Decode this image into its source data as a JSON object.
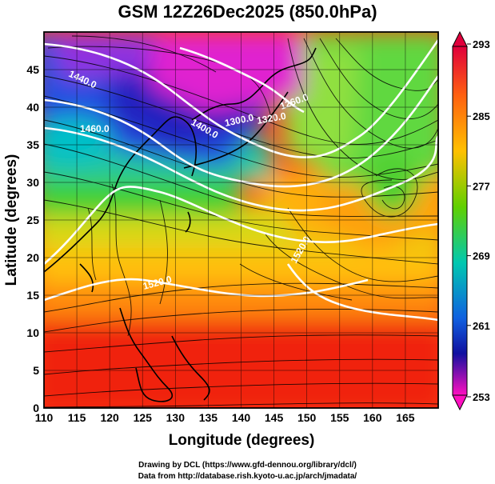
{
  "title": "GSM 12Z26Dec2025 (850.0hPa)",
  "x_axis": {
    "label": "Longitude (degrees)",
    "ticks": [
      "110",
      "115",
      "120",
      "125",
      "130",
      "135",
      "140",
      "145",
      "150",
      "155",
      "160",
      "165"
    ]
  },
  "y_axis": {
    "label": "Latitude  (degrees)",
    "ticks": [
      "0",
      "5",
      "10",
      "15",
      "20",
      "25",
      "30",
      "35",
      "40",
      "45"
    ]
  },
  "colorbar": {
    "ticks": [
      "293",
      "285",
      "277",
      "269",
      "261",
      "253"
    ],
    "colors": [
      "#e0003c",
      "#ff6010",
      "#ffc000",
      "#60d000",
      "#00c8b0",
      "#1060e0",
      "#1010a0",
      "#ff10c0"
    ]
  },
  "contour_labels": [
    "1440.0",
    "1460.0",
    "1400.0",
    "1300.0",
    "1320.0",
    "1260.0",
    "1520.0",
    "1520.0"
  ],
  "credits": [
    "Drawing by DCL (https://www.gfd-dennou.org/library/dcl/)",
    "Data from http://database.rish.kyoto-u.ac.jp/arch/jmadata/"
  ],
  "chart_data": {
    "type": "heatmap",
    "title": "GSM 12Z26Dec2025 (850.0hPa)",
    "xlabel": "Longitude (degrees)",
    "ylabel": "Latitude  (degrees)",
    "xlim": [
      110,
      170
    ],
    "ylim": [
      0,
      50
    ],
    "colorbar_range": [
      253,
      293
    ],
    "colorbar_ticks": [
      293,
      285,
      277,
      269,
      261,
      253
    ],
    "contour_labels": [
      1440.0,
      1460.0,
      1400.0,
      1300.0,
      1320.0,
      1260.0,
      1520.0,
      1520.0
    ],
    "overlay": "streamlines"
  }
}
